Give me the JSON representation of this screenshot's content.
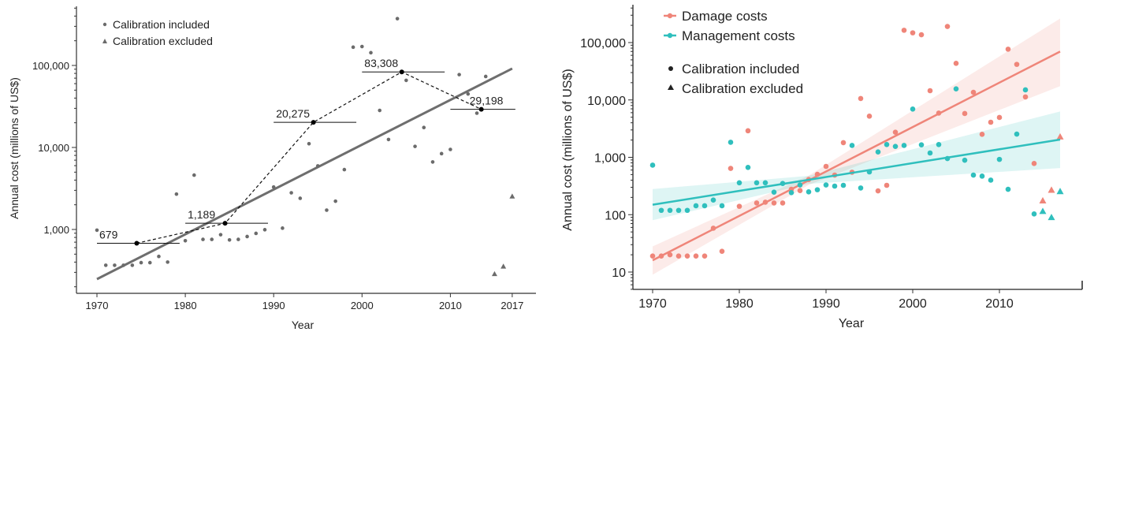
{
  "chart_data": [
    {
      "type": "scatter",
      "xlabel": "Year",
      "ylabel": "Annual cost (millions of US$)",
      "yscale": "log",
      "xlim": [
        1970,
        2017
      ],
      "ylim": [
        200,
        400000
      ],
      "xticks": [
        1970,
        1980,
        1990,
        2000,
        2010,
        2017
      ],
      "xtick_labels": [
        "1970",
        "1980",
        "1990",
        "2000",
        "2010",
        "2017"
      ],
      "yticks": [
        1000,
        10000,
        100000
      ],
      "ytick_labels": [
        "1,000",
        "10,000",
        "100,000"
      ],
      "legend": {
        "placement": "top-left",
        "entries": [
          "Calibration included",
          "Calibration excluded"
        ]
      },
      "colors": {
        "points": "#6b6b6b",
        "trend": "#6e6e6e",
        "decade": "#000000"
      },
      "series": [
        {
          "name": "Calibration included",
          "marker": "circle",
          "x": [
            1970,
            1971,
            1972,
            1973,
            1974,
            1975,
            1976,
            1977,
            1978,
            1979,
            1980,
            1981,
            1982,
            1983,
            1984,
            1985,
            1986,
            1987,
            1988,
            1989,
            1990,
            1991,
            1992,
            1993,
            1994,
            1995,
            1996,
            1997,
            1998,
            1999,
            2000,
            2001,
            2002,
            2003,
            2004,
            2005,
            2006,
            2007,
            2008,
            2009,
            2010,
            2011,
            2012,
            2013,
            2014
          ],
          "y": [
            980,
            366,
            366,
            366,
            366,
            394,
            394,
            469,
            400,
            2700,
            729,
            4600,
            757,
            757,
            863,
            745,
            757,
            820,
            896,
            993,
            3290,
            1037,
            2800,
            2400,
            11100,
            5960,
            1720,
            2210,
            5370,
            167000,
            170000,
            143000,
            28300,
            12500,
            372000,
            65800,
            10300,
            17500,
            6650,
            8410,
            9460,
            77300,
            44900,
            26200,
            73400
          ]
        },
        {
          "name": "Calibration excluded",
          "marker": "triangle",
          "x": [
            2015,
            2016,
            2017
          ],
          "y": [
            287,
            355,
            2540
          ]
        }
      ],
      "trend": {
        "x": [
          1970,
          2017
        ],
        "y": [
          248,
          91600
        ]
      },
      "decade_means": [
        {
          "x": 1974.5,
          "y": 679,
          "label": "679",
          "span": [
            1970,
            1979
          ]
        },
        {
          "x": 1984.5,
          "y": 1189,
          "label": "1,189",
          "span": [
            1980,
            1989
          ]
        },
        {
          "x": 1994.5,
          "y": 20275,
          "label": "20,275",
          "span": [
            1990,
            1999
          ]
        },
        {
          "x": 2004.5,
          "y": 83308,
          "label": "83,308",
          "span": [
            2000,
            2009
          ]
        },
        {
          "x": 2013.5,
          "y": 29198,
          "label": "29,198",
          "span": [
            2010,
            2017
          ]
        }
      ]
    },
    {
      "type": "scatter",
      "xlabel": "Year",
      "ylabel": "Annual cost (millions of US$)",
      "yscale": "log",
      "xlim": [
        1968,
        2020
      ],
      "ylim": [
        5,
        400000
      ],
      "xticks": [
        1970,
        1980,
        1990,
        2000,
        2010
      ],
      "xtick_labels": [
        "1970",
        "1980",
        "1990",
        "2000",
        "2010"
      ],
      "yticks": [
        10,
        100,
        1000,
        10000,
        100000
      ],
      "ytick_labels": [
        "10",
        "100",
        "1,000",
        "10,000",
        "100,000"
      ],
      "legend": {
        "placement": "top-left",
        "entries": [
          "Damage costs",
          "Management costs",
          "Calibration included",
          "Calibration excluded"
        ]
      },
      "series": [
        {
          "name": "Damage costs",
          "color": "#ef8579",
          "included": {
            "x": [
              1970,
              1971,
              1972,
              1973,
              1974,
              1975,
              1976,
              1977,
              1978,
              1979,
              1980,
              1981,
              1982,
              1983,
              1984,
              1985,
              1986,
              1987,
              1988,
              1989,
              1990,
              1991,
              1992,
              1993,
              1994,
              1995,
              1996,
              1997,
              1998,
              1999,
              2000,
              2001,
              2002,
              2003,
              2004,
              2005,
              2006,
              2007,
              2008,
              2009,
              2010,
              2011,
              2012,
              2013,
              2014
            ],
            "y": [
              19,
              19,
              20,
              19,
              19,
              19,
              19,
              58,
              23,
              640,
              140,
              2900,
              160,
              165,
              160,
              160,
              277,
              263,
              410,
              506,
              695,
              490,
              1800,
              550,
              10600,
              5210,
              260,
              325,
              2740,
              164000,
              148000,
              137000,
              14500,
              5900,
              191000,
              43500,
              5800,
              13600,
              2520,
              4090,
              4950,
              76700,
              41700,
              11300,
              780
            ]
          },
          "excluded": {
            "x": [
              2015,
              2016,
              2017
            ],
            "y": [
              176,
              270,
              2290
            ]
          },
          "trend": {
            "x": [
              1970,
              2017
            ],
            "y": [
              16,
              69800
            ]
          },
          "ci": {
            "x": [
              1970,
              1988,
              2017
            ],
            "low": [
              9,
              330,
              17400
            ],
            "high": [
              28,
              480,
              263000
            ]
          }
        },
        {
          "name": "Management costs",
          "color": "#2fbfbd",
          "included": {
            "x": [
              1970,
              1971,
              1972,
              1973,
              1974,
              1975,
              1976,
              1977,
              1978,
              1979,
              1980,
              1981,
              1982,
              1983,
              1984,
              1985,
              1986,
              1987,
              1988,
              1989,
              1990,
              1991,
              1992,
              1993,
              1994,
              1995,
              1996,
              1997,
              1998,
              1999,
              2000,
              2001,
              2002,
              2003,
              2004,
              2005,
              2006,
              2007,
              2008,
              2009,
              2010,
              2011,
              2012,
              2013,
              2014
            ],
            "y": [
              730,
              119,
              119,
              119,
              119,
              143,
              143,
              180,
              143,
              1830,
              360,
              667,
              360,
              360,
              247,
              350,
              242,
              330,
              250,
              272,
              330,
              315,
              325,
              1610,
              292,
              557,
              1240,
              1670,
              1550,
              1610,
              6930,
              1650,
              1190,
              1670,
              953,
              15600,
              890,
              490,
              470,
              400,
              920,
              277,
              2540,
              15000,
              103
            ]
          },
          "excluded": {
            "x": [
              2015,
              2016,
              2017
            ],
            "y": [
              115,
              90,
              255
            ]
          },
          "trend": {
            "x": [
              1970,
              2017
            ],
            "y": [
              149,
              2040
            ]
          },
          "ci": {
            "x": [
              1970,
              1988,
              2017
            ],
            "low": [
              80,
              345,
              650
            ],
            "high": [
              280,
              475,
              6300
            ]
          }
        }
      ]
    }
  ]
}
